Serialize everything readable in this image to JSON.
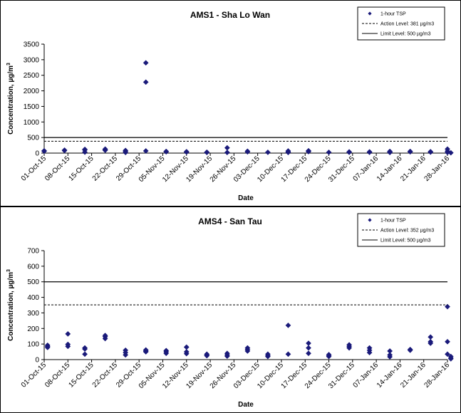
{
  "chart_data": [
    {
      "type": "scatter",
      "title": "AMS1 - Sha Lo Wan",
      "xlabel": "Date",
      "ylabel": "Concentration, µg/m",
      "ylabel_sup": "3",
      "ylim": [
        0,
        3500
      ],
      "yticks": [
        "0",
        "500",
        "1000",
        "1500",
        "2000",
        "2500",
        "3000",
        "3500"
      ],
      "xlim": [
        "2015-10-01",
        "2016-01-28"
      ],
      "xticks": [
        "01-Oct-15",
        "08-Oct-15",
        "15-Oct-15",
        "22-Oct-15",
        "29-Oct-15",
        "05-Nov-15",
        "12-Nov-15",
        "19-Nov-15",
        "26-Nov-15",
        "03-Dec-15",
        "10-Dec-15",
        "17-Dec-15",
        "24-Dec-15",
        "31-Dec-15",
        "07-Jan-16",
        "14-Jan-16",
        "21-Jan-16",
        "28-Jan-16"
      ],
      "grid": false,
      "legend": "top-right",
      "series": [
        {
          "name": "1-hour TSP",
          "kind": "points",
          "color": "#1a1a7a",
          "points": [
            [
              "2015-10-01",
              75
            ],
            [
              "2015-10-01",
              60
            ],
            [
              "2015-10-07",
              95
            ],
            [
              "2015-10-07",
              80
            ],
            [
              "2015-10-13",
              120
            ],
            [
              "2015-10-13",
              100
            ],
            [
              "2015-10-13",
              30
            ],
            [
              "2015-10-19",
              130
            ],
            [
              "2015-10-19",
              110
            ],
            [
              "2015-10-19",
              90
            ],
            [
              "2015-10-25",
              85
            ],
            [
              "2015-10-25",
              60
            ],
            [
              "2015-10-25",
              20
            ],
            [
              "2015-10-31",
              2900
            ],
            [
              "2015-10-31",
              2280
            ],
            [
              "2015-10-31",
              70
            ],
            [
              "2015-11-06",
              55
            ],
            [
              "2015-11-06",
              40
            ],
            [
              "2015-11-12",
              45
            ],
            [
              "2015-11-12",
              30
            ],
            [
              "2015-11-18",
              30
            ],
            [
              "2015-11-18",
              20
            ],
            [
              "2015-11-24",
              170
            ],
            [
              "2015-11-24",
              20
            ],
            [
              "2015-11-30",
              40
            ],
            [
              "2015-11-30",
              60
            ],
            [
              "2015-12-06",
              25
            ],
            [
              "2015-12-12",
              70
            ],
            [
              "2015-12-12",
              40
            ],
            [
              "2015-12-12",
              20
            ],
            [
              "2015-12-18",
              75
            ],
            [
              "2015-12-18",
              60
            ],
            [
              "2015-12-18",
              45
            ],
            [
              "2015-12-24",
              25
            ],
            [
              "2015-12-30",
              40
            ],
            [
              "2015-12-30",
              25
            ],
            [
              "2016-01-05",
              40
            ],
            [
              "2016-01-05",
              25
            ],
            [
              "2016-01-11",
              55
            ],
            [
              "2016-01-11",
              40
            ],
            [
              "2016-01-11",
              20
            ],
            [
              "2016-01-17",
              55
            ],
            [
              "2016-01-17",
              40
            ],
            [
              "2016-01-23",
              45
            ],
            [
              "2016-01-23",
              30
            ],
            [
              "2016-01-29",
              10
            ],
            [
              "2016-01-28",
              130
            ],
            [
              "2016-01-28",
              60
            ],
            [
              "2016-01-28",
              20
            ]
          ]
        },
        {
          "name": "Action Level: 381 µg/m3",
          "kind": "hline",
          "value": 381,
          "dash": true
        },
        {
          "name": "Limit Level: 500 µg/m3",
          "kind": "hline",
          "value": 500,
          "dash": false
        }
      ]
    },
    {
      "type": "scatter",
      "title": "AMS4 - San Tau",
      "xlabel": "Date",
      "ylabel": "Concentration, µg/m",
      "ylabel_sup": "3",
      "ylim": [
        0,
        700
      ],
      "yticks": [
        "0",
        "100",
        "200",
        "300",
        "400",
        "500",
        "600",
        "700"
      ],
      "xlim": [
        "2015-10-01",
        "2016-01-28"
      ],
      "xticks": [
        "01-Oct-15",
        "08-Oct-15",
        "15-Oct-15",
        "22-Oct-15",
        "29-Oct-15",
        "05-Nov-15",
        "12-Nov-15",
        "19-Nov-15",
        "26-Nov-15",
        "03-Dec-15",
        "10-Dec-15",
        "17-Dec-15",
        "24-Dec-15",
        "31-Dec-15",
        "07-Jan-16",
        "14-Jan-16",
        "21-Jan-16",
        "28-Jan-16"
      ],
      "grid": false,
      "legend": "top-right",
      "series": [
        {
          "name": "1-hour TSP",
          "kind": "points",
          "color": "#1a1a7a",
          "points": [
            [
              "2015-10-02",
              92
            ],
            [
              "2015-10-02",
              85
            ],
            [
              "2015-10-02",
              78
            ],
            [
              "2015-10-08",
              165
            ],
            [
              "2015-10-08",
              98
            ],
            [
              "2015-10-08",
              85
            ],
            [
              "2015-10-13",
              75
            ],
            [
              "2015-10-13",
              68
            ],
            [
              "2015-10-13",
              35
            ],
            [
              "2015-10-19",
              155
            ],
            [
              "2015-10-19",
              148
            ],
            [
              "2015-10-19",
              135
            ],
            [
              "2015-10-25",
              60
            ],
            [
              "2015-10-25",
              45
            ],
            [
              "2015-10-25",
              30
            ],
            [
              "2015-10-31",
              62
            ],
            [
              "2015-10-31",
              55
            ],
            [
              "2015-10-31",
              50
            ],
            [
              "2015-11-06",
              58
            ],
            [
              "2015-11-06",
              50
            ],
            [
              "2015-11-06",
              40
            ],
            [
              "2015-11-12",
              80
            ],
            [
              "2015-11-12",
              50
            ],
            [
              "2015-11-12",
              38
            ],
            [
              "2015-11-18",
              35
            ],
            [
              "2015-11-18",
              28
            ],
            [
              "2015-11-18",
              25
            ],
            [
              "2015-11-24",
              40
            ],
            [
              "2015-11-24",
              30
            ],
            [
              "2015-11-24",
              22
            ],
            [
              "2015-11-30",
              75
            ],
            [
              "2015-11-30",
              65
            ],
            [
              "2015-11-30",
              55
            ],
            [
              "2015-12-06",
              35
            ],
            [
              "2015-12-06",
              25
            ],
            [
              "2015-12-06",
              20
            ],
            [
              "2015-12-12",
              220
            ],
            [
              "2015-12-12",
              35
            ],
            [
              "2015-12-18",
              105
            ],
            [
              "2015-12-18",
              75
            ],
            [
              "2015-12-18",
              40
            ],
            [
              "2015-12-24",
              32
            ],
            [
              "2015-12-24",
              25
            ],
            [
              "2015-12-24",
              20
            ],
            [
              "2015-12-30",
              95
            ],
            [
              "2015-12-30",
              85
            ],
            [
              "2015-12-30",
              75
            ],
            [
              "2016-01-05",
              75
            ],
            [
              "2016-01-05",
              60
            ],
            [
              "2016-01-05",
              45
            ],
            [
              "2016-01-11",
              55
            ],
            [
              "2016-01-11",
              30
            ],
            [
              "2016-01-11",
              18
            ],
            [
              "2016-01-17",
              65
            ],
            [
              "2016-01-17",
              60
            ],
            [
              "2016-01-23",
              145
            ],
            [
              "2016-01-23",
              115
            ],
            [
              "2016-01-23",
              105
            ],
            [
              "2016-01-29",
              20
            ],
            [
              "2016-01-29",
              10
            ],
            [
              "2016-01-29",
              5
            ],
            [
              "2016-01-28",
              340
            ],
            [
              "2016-01-28",
              115
            ],
            [
              "2016-01-28",
              35
            ]
          ]
        },
        {
          "name": "Action Level: 352 µg/m3",
          "kind": "hline",
          "value": 352,
          "dash": true
        },
        {
          "name": "Limit Level: 500 µg/m3",
          "kind": "hline",
          "value": 500,
          "dash": false
        }
      ]
    }
  ]
}
